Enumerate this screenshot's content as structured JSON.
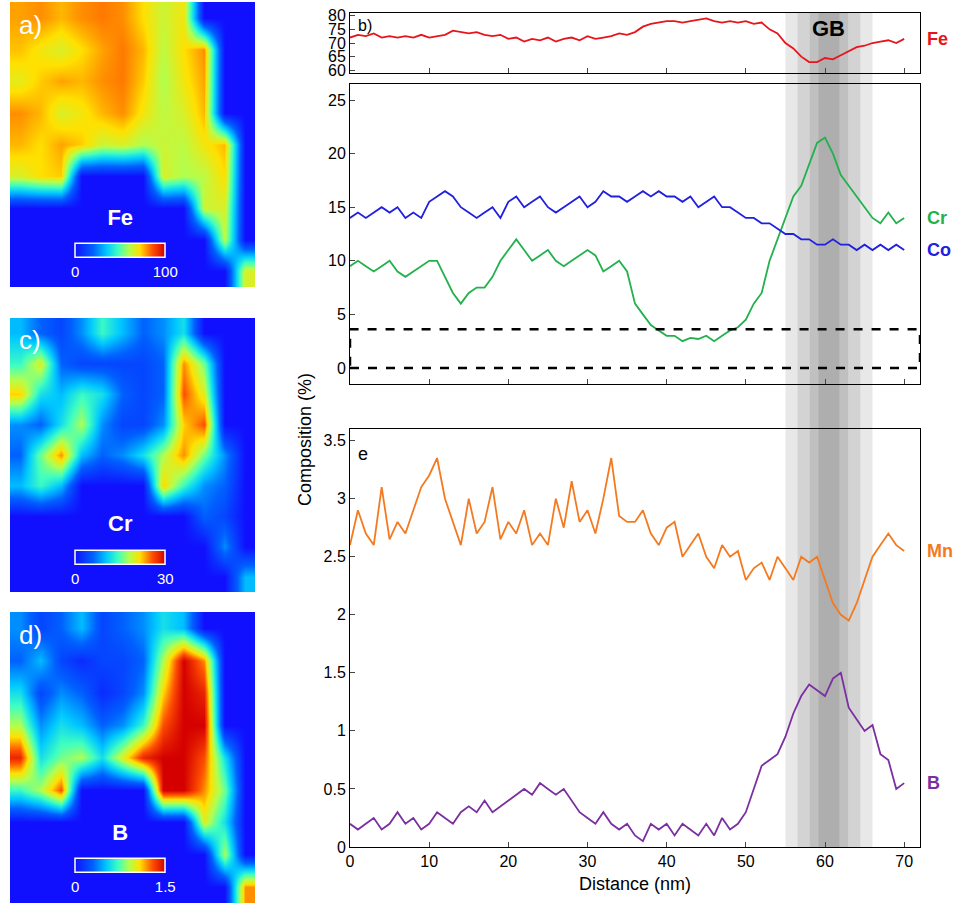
{
  "chart_data": [
    {
      "type": "heatmap",
      "panel": "a)",
      "colorbar_title": "Fe",
      "zlim": [
        0,
        100
      ],
      "zticks": [
        0,
        100
      ],
      "tick_labels": false,
      "z": [
        [
          78,
          80,
          76,
          80,
          82,
          80,
          72,
          64,
          70,
          0,
          0,
          0
        ],
        [
          75,
          70,
          66,
          72,
          78,
          82,
          76,
          62,
          72,
          80,
          0,
          0
        ],
        [
          68,
          74,
          78,
          76,
          80,
          82,
          74,
          60,
          70,
          78,
          0,
          0
        ],
        [
          80,
          76,
          66,
          70,
          76,
          80,
          70,
          62,
          66,
          76,
          0,
          0
        ],
        [
          76,
          72,
          78,
          74,
          64,
          66,
          60,
          64,
          62,
          70,
          76,
          0
        ],
        [
          66,
          72,
          74,
          0,
          0,
          0,
          0,
          66,
          60,
          62,
          72,
          0
        ],
        [
          0,
          0,
          0,
          0,
          0,
          0,
          0,
          0,
          0,
          64,
          66,
          0
        ],
        [
          0,
          0,
          0,
          0,
          0,
          0,
          0,
          0,
          0,
          0,
          62,
          0
        ],
        [
          0,
          0,
          0,
          0,
          0,
          0,
          0,
          0,
          0,
          0,
          0,
          66
        ]
      ]
    },
    {
      "type": "heatmap",
      "panel": "c)",
      "colorbar_title": "Cr",
      "zlim": [
        0,
        30
      ],
      "zticks": [
        0,
        30
      ],
      "tick_labels": false,
      "z": [
        [
          10,
          6,
          4,
          8,
          14,
          10,
          6,
          8,
          12,
          0,
          0,
          0
        ],
        [
          14,
          20,
          6,
          4,
          4,
          4,
          4,
          6,
          24,
          16,
          0,
          0
        ],
        [
          22,
          12,
          10,
          14,
          12,
          6,
          4,
          6,
          26,
          20,
          0,
          0
        ],
        [
          8,
          6,
          12,
          18,
          8,
          4,
          4,
          8,
          22,
          26,
          0,
          0
        ],
        [
          6,
          16,
          24,
          10,
          6,
          8,
          12,
          18,
          24,
          16,
          8,
          0
        ],
        [
          10,
          14,
          10,
          0,
          0,
          0,
          0,
          22,
          14,
          8,
          6,
          0
        ],
        [
          0,
          0,
          0,
          0,
          0,
          0,
          0,
          0,
          0,
          6,
          4,
          0
        ],
        [
          0,
          0,
          0,
          0,
          0,
          0,
          0,
          0,
          0,
          0,
          8,
          0
        ],
        [
          0,
          0,
          0,
          0,
          0,
          0,
          0,
          0,
          0,
          0,
          0,
          10
        ]
      ]
    },
    {
      "type": "heatmap",
      "panel": "d)",
      "colorbar_title": "B",
      "zlim": [
        0,
        1.5
      ],
      "zticks": [
        0,
        1.5
      ],
      "tick_labels": false,
      "z": [
        [
          0.4,
          0.2,
          0.3,
          0.5,
          0.2,
          0.3,
          0.4,
          0.6,
          0.5,
          0,
          0,
          0
        ],
        [
          0.3,
          0.5,
          0.2,
          0.1,
          0.2,
          0.2,
          0.3,
          0.9,
          1.5,
          1.2,
          0,
          0
        ],
        [
          0.6,
          0.2,
          0.4,
          0.3,
          0.1,
          0.2,
          0.4,
          1.1,
          1.5,
          1.4,
          0,
          0
        ],
        [
          0.9,
          0.4,
          0.6,
          0.5,
          0.3,
          0.4,
          0.7,
          1.3,
          1.5,
          1.5,
          0,
          0
        ],
        [
          1.4,
          0.6,
          0.8,
          0.9,
          0.6,
          1.0,
          1.4,
          1.5,
          1.5,
          1.3,
          0.6,
          0
        ],
        [
          0.7,
          0.9,
          1.3,
          0,
          0,
          0,
          0,
          1.5,
          1.5,
          1.2,
          0.8,
          0
        ],
        [
          0,
          0,
          0,
          0,
          0,
          0,
          0,
          0,
          0,
          1.0,
          0.6,
          0
        ],
        [
          0,
          0,
          0,
          0,
          0,
          0,
          0,
          0,
          0,
          0,
          0.9,
          0
        ],
        [
          0,
          0,
          0,
          0,
          0,
          0,
          0,
          0,
          0,
          0,
          0,
          1.2
        ]
      ]
    },
    {
      "type": "line",
      "xlabel": "Distance (nm)",
      "ylabel": "Composition (%)",
      "grid": false,
      "x": [
        0,
        1,
        2,
        3,
        4,
        5,
        6,
        7,
        8,
        9,
        10,
        11,
        12,
        13,
        14,
        15,
        16,
        17,
        18,
        19,
        20,
        21,
        22,
        23,
        24,
        25,
        26,
        27,
        28,
        29,
        30,
        31,
        32,
        33,
        34,
        35,
        36,
        37,
        38,
        39,
        40,
        41,
        42,
        43,
        44,
        45,
        46,
        47,
        48,
        49,
        50,
        51,
        52,
        53,
        54,
        55,
        56,
        57,
        58,
        59,
        60,
        61,
        62,
        63,
        64,
        65,
        66,
        67,
        68,
        69,
        70
      ],
      "xlim": [
        0,
        72
      ],
      "xticks": [
        0,
        10,
        20,
        30,
        40,
        50,
        60,
        70
      ],
      "band": {
        "label": "GB",
        "x": [
          55,
          66
        ]
      },
      "panels": [
        {
          "panel": "b)",
          "ylim": [
            59,
            81
          ],
          "yticks": [
            60,
            65,
            70,
            75,
            80
          ],
          "series": [
            {
              "name": "Fe",
              "color": "#e8141c",
              "values": [
                72,
                73,
                72.5,
                73.5,
                72,
                72.5,
                72,
                72.5,
                72,
                73,
                72,
                72.5,
                73,
                74.5,
                74,
                73.5,
                74,
                73,
                72.5,
                73,
                71.5,
                72,
                70.5,
                71.5,
                71,
                72,
                70.5,
                71.5,
                72,
                71,
                72.5,
                71.5,
                72,
                72.5,
                73.5,
                73,
                74,
                76,
                77,
                77.5,
                78,
                78,
                77.5,
                78,
                78.5,
                79,
                78,
                77.5,
                78,
                77.5,
                78,
                77,
                77.5,
                75,
                73.5,
                70,
                68,
                65,
                63,
                63,
                64.5,
                64,
                65.5,
                67,
                68.5,
                69,
                70,
                70.5,
                71,
                70,
                71.5
              ]
            }
          ]
        },
        {
          "ylim": [
            -1.5,
            26.5
          ],
          "yticks": [
            0,
            5,
            10,
            15,
            20,
            25
          ],
          "series": [
            {
              "name": "Cr",
              "color": "#22b14c",
              "values": [
                9.5,
                10,
                9.5,
                9,
                9.5,
                10,
                9,
                8.5,
                9,
                9.5,
                10,
                10,
                8.5,
                7,
                6,
                7,
                7.5,
                7.5,
                8.5,
                10,
                11,
                12,
                11,
                10,
                10.5,
                11,
                10,
                9.5,
                10,
                10.5,
                11,
                10.5,
                9,
                9.5,
                10,
                9,
                6,
                5,
                4,
                3.5,
                3,
                3,
                2.5,
                2.8,
                2.7,
                3,
                2.5,
                3,
                3.5,
                3.8,
                4.5,
                6,
                7,
                10,
                12,
                14,
                16,
                17,
                19,
                21,
                21.5,
                20,
                18,
                17,
                16,
                15,
                14,
                13.5,
                14.5,
                13.5,
                14
              ]
            },
            {
              "name": "Co",
              "color": "#2020e0",
              "values": [
                14,
                14.5,
                14,
                14.5,
                15,
                14.5,
                15,
                14,
                14.5,
                14,
                15.5,
                16,
                16.5,
                16,
                15,
                14.5,
                14,
                14.5,
                15,
                14,
                15.5,
                16,
                15,
                15.5,
                16,
                15,
                14.5,
                15,
                15.5,
                16,
                15,
                15.5,
                16.5,
                16,
                16,
                15.5,
                16,
                16.5,
                16,
                16.5,
                16,
                16,
                15.5,
                16,
                15,
                15.5,
                16,
                15,
                15,
                14.5,
                14,
                14,
                13.5,
                13.5,
                13,
                12.5,
                12.5,
                12,
                12,
                11.5,
                11.5,
                12,
                11.5,
                11.5,
                11,
                11.5,
                11,
                11.5,
                11,
                11.5,
                11
              ]
            }
          ]
        },
        {
          "panel": "e",
          "ylim": [
            0,
            3.6
          ],
          "yticks": [
            0,
            0.5,
            1,
            1.5,
            2,
            2.5,
            3,
            3.5
          ],
          "series": [
            {
              "name": "Mn",
              "color": "#f47a20",
              "values": [
                2.6,
                2.9,
                2.7,
                2.6,
                3.1,
                2.65,
                2.8,
                2.7,
                2.9,
                3.1,
                3.2,
                3.35,
                3.0,
                2.8,
                2.6,
                3.0,
                2.7,
                2.8,
                3.1,
                2.65,
                2.8,
                2.7,
                2.9,
                2.6,
                2.7,
                2.6,
                3.0,
                2.75,
                3.15,
                2.8,
                2.9,
                2.7,
                3.0,
                3.35,
                2.85,
                2.8,
                2.8,
                2.9,
                2.7,
                2.6,
                2.75,
                2.8,
                2.5,
                2.6,
                2.7,
                2.5,
                2.4,
                2.6,
                2.5,
                2.55,
                2.3,
                2.4,
                2.45,
                2.3,
                2.5,
                2.4,
                2.3,
                2.5,
                2.45,
                2.5,
                2.3,
                2.1,
                2.0,
                1.95,
                2.1,
                2.3,
                2.5,
                2.6,
                2.7,
                2.6,
                2.55
              ]
            },
            {
              "name": "B",
              "color": "#7b2fa0",
              "values": [
                0.2,
                0.15,
                0.2,
                0.25,
                0.15,
                0.2,
                0.3,
                0.2,
                0.25,
                0.15,
                0.2,
                0.3,
                0.25,
                0.2,
                0.3,
                0.35,
                0.3,
                0.4,
                0.3,
                0.35,
                0.4,
                0.45,
                0.5,
                0.45,
                0.55,
                0.5,
                0.45,
                0.5,
                0.4,
                0.3,
                0.25,
                0.2,
                0.3,
                0.2,
                0.15,
                0.2,
                0.1,
                0.05,
                0.2,
                0.15,
                0.2,
                0.1,
                0.2,
                0.15,
                0.1,
                0.2,
                0.1,
                0.25,
                0.15,
                0.2,
                0.3,
                0.5,
                0.7,
                0.75,
                0.8,
                0.95,
                1.15,
                1.3,
                1.4,
                1.35,
                1.3,
                1.45,
                1.5,
                1.2,
                1.1,
                1.0,
                1.05,
                0.8,
                0.75,
                0.5,
                0.55
              ]
            }
          ]
        }
      ]
    }
  ]
}
